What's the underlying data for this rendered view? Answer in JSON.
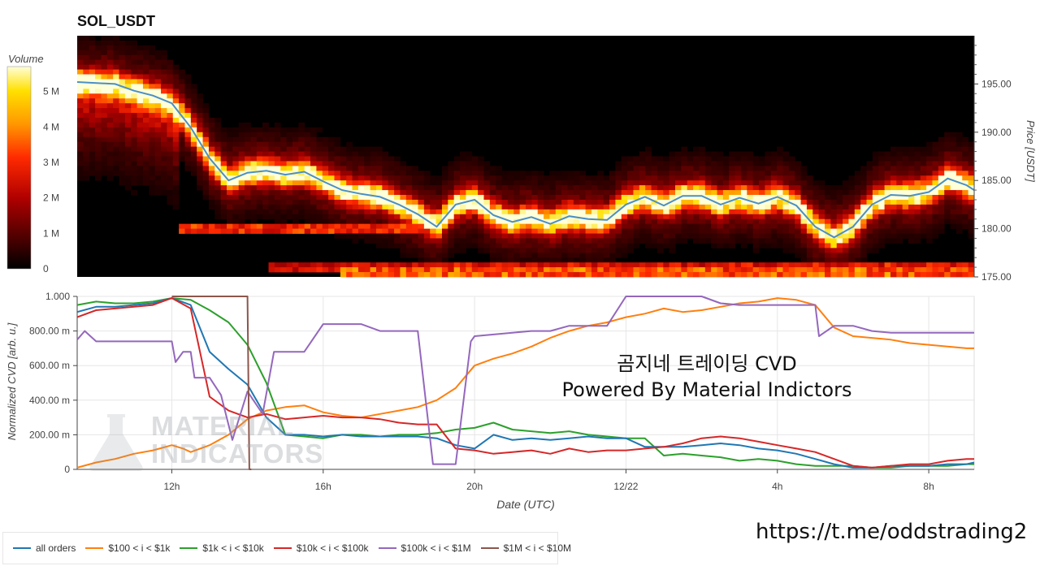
{
  "title": "SOL_USDT",
  "watermark": {
    "line1": "곰지네 트레이딩 CVD",
    "line2": "Powered By Material Indictors"
  },
  "brand": {
    "line1": "MATERIAL",
    "line2": "INDICATORS"
  },
  "url": "https://t.me/oddstrading2",
  "colorbar": {
    "label": "Volume",
    "ticks": [
      "0",
      "1 M",
      "2 M",
      "3 M",
      "4 M",
      "5 M"
    ]
  },
  "x_ticks": [
    "12h",
    "16h",
    "20h",
    "12/22",
    "4h",
    "8h"
  ],
  "legend": [
    {
      "label": "all orders",
      "color": "#1f77b4"
    },
    {
      "label": "$100 < i < $1k",
      "color": "#ff7f0e"
    },
    {
      "label": "$1k < i < $10k",
      "color": "#2ca02c"
    },
    {
      "label": "$10k < i < $100k",
      "color": "#d62728"
    },
    {
      "label": "$100k < i < $1M",
      "color": "#9467bd"
    },
    {
      "label": "$1M < i < $10M",
      "color": "#8c564b"
    }
  ],
  "chart_data": [
    {
      "type": "heatmap",
      "title": "SOL_USDT",
      "ylabel": "Price [USDT]",
      "ylim": [
        175,
        200
      ],
      "y_ticks": [
        "175.00",
        "180.00",
        "185.00",
        "190.00",
        "195.00"
      ],
      "colorscale": "hot",
      "zlim": [
        0,
        5700000
      ],
      "x_ticks": [
        "12h",
        "16h",
        "20h",
        "12/22",
        "4h",
        "8h"
      ],
      "price_line": {
        "name": "price",
        "color": "#4a8fc7",
        "x": [
          9.5,
          10.5,
          11.0,
          11.5,
          12.0,
          12.5,
          13.0,
          13.5,
          14.0,
          14.5,
          15.0,
          15.5,
          16.0,
          16.5,
          17.0,
          17.5,
          18.0,
          18.5,
          19.0,
          19.5,
          20.0,
          20.5,
          21.0,
          21.5,
          22.0,
          22.5,
          23.0,
          23.5,
          24.0,
          24.5,
          25.0,
          25.5,
          26.0,
          26.5,
          27.0,
          27.5,
          28.0,
          28.5,
          29.0,
          29.5,
          30.0,
          30.5,
          31.0,
          31.5,
          32.0,
          32.5,
          33.0,
          33.2
        ],
        "y": [
          195.2,
          195.0,
          194.3,
          193.8,
          193.0,
          190.5,
          187.3,
          185.0,
          185.8,
          186.0,
          185.6,
          185.9,
          184.9,
          184.0,
          183.6,
          183.3,
          182.5,
          181.5,
          180.2,
          182.5,
          183.0,
          181.4,
          180.7,
          181.2,
          180.5,
          181.3,
          181.0,
          180.9,
          182.5,
          183.3,
          182.4,
          183.4,
          183.4,
          182.5,
          183.2,
          182.6,
          183.3,
          182.4,
          180.2,
          179.1,
          180.2,
          182.5,
          183.5,
          183.4,
          183.8,
          185.2,
          184.5,
          184.0
        ]
      },
      "bands": [
        {
          "price": 180.0,
          "start": 12.2,
          "end": 19.0,
          "level": 0.45
        },
        {
          "price": 176.0,
          "start": 14.5,
          "end": 33.2,
          "level": 0.4
        },
        {
          "price": 175.5,
          "start": 16.5,
          "end": 33.2,
          "level": 0.55
        }
      ]
    },
    {
      "type": "line",
      "xlabel": "Date (UTC)",
      "ylabel": "Normalized CVD [arb. u.]",
      "ylim": [
        0,
        1
      ],
      "y_ticks": [
        "0",
        "200.00 m",
        "400.00 m",
        "600.00 m",
        "800.00 m",
        "1.000"
      ],
      "x_ticks": [
        "12h",
        "16h",
        "20h",
        "12/22",
        "4h",
        "8h"
      ],
      "series": [
        {
          "name": "$100 < i < $1k",
          "color": "#ff7f0e",
          "x": [
            9.5,
            10.0,
            10.5,
            11.0,
            11.5,
            12.0,
            12.3,
            12.5,
            13.0,
            13.5,
            14.0,
            14.5,
            15.0,
            15.5,
            16.0,
            16.5,
            17.0,
            17.5,
            18.0,
            18.5,
            19.0,
            19.5,
            20.0,
            20.5,
            21.0,
            21.5,
            22.0,
            22.5,
            23.0,
            23.5,
            24.0,
            24.5,
            25.0,
            25.5,
            26.0,
            26.5,
            27.0,
            27.5,
            28.0,
            28.5,
            29.0,
            29.5,
            30.0,
            30.5,
            31.0,
            31.5,
            32.0,
            32.5,
            33.0,
            33.2
          ],
          "y": [
            0.01,
            0.04,
            0.06,
            0.09,
            0.11,
            0.14,
            0.12,
            0.1,
            0.14,
            0.2,
            0.29,
            0.34,
            0.36,
            0.37,
            0.33,
            0.31,
            0.3,
            0.32,
            0.34,
            0.36,
            0.4,
            0.47,
            0.6,
            0.64,
            0.67,
            0.71,
            0.76,
            0.8,
            0.83,
            0.85,
            0.88,
            0.9,
            0.93,
            0.91,
            0.92,
            0.94,
            0.96,
            0.97,
            0.99,
            0.98,
            0.95,
            0.82,
            0.77,
            0.76,
            0.75,
            0.73,
            0.72,
            0.71,
            0.7,
            0.7
          ]
        },
        {
          "name": "$1k < i < $10k",
          "color": "#2ca02c",
          "x": [
            9.5,
            10.0,
            10.5,
            11.0,
            11.5,
            12.0,
            12.5,
            13.0,
            13.5,
            14.0,
            14.5,
            15.0,
            15.5,
            16.0,
            16.5,
            17.0,
            17.5,
            18.0,
            18.5,
            19.0,
            19.5,
            20.0,
            20.5,
            21.0,
            21.5,
            22.0,
            22.5,
            23.0,
            23.5,
            24.0,
            24.5,
            25.0,
            25.5,
            26.0,
            26.5,
            27.0,
            27.5,
            28.0,
            28.5,
            29.0,
            29.5,
            30.0,
            30.5,
            31.0,
            31.5,
            32.0,
            32.5,
            33.0,
            33.2
          ],
          "y": [
            0.95,
            0.97,
            0.96,
            0.96,
            0.97,
            0.99,
            0.98,
            0.92,
            0.85,
            0.72,
            0.5,
            0.2,
            0.19,
            0.18,
            0.2,
            0.2,
            0.19,
            0.2,
            0.2,
            0.21,
            0.23,
            0.24,
            0.27,
            0.23,
            0.22,
            0.21,
            0.22,
            0.2,
            0.19,
            0.18,
            0.18,
            0.08,
            0.09,
            0.08,
            0.07,
            0.05,
            0.06,
            0.05,
            0.03,
            0.02,
            0.02,
            0.02,
            0.01,
            0.01,
            0.02,
            0.02,
            0.02,
            0.03,
            0.03
          ]
        },
        {
          "name": "all orders",
          "color": "#1f77b4",
          "x": [
            9.5,
            10.0,
            10.5,
            11.0,
            11.5,
            12.0,
            12.5,
            13.0,
            13.5,
            14.0,
            14.5,
            15.0,
            15.5,
            16.0,
            16.5,
            17.0,
            17.5,
            18.0,
            18.5,
            19.0,
            19.5,
            20.0,
            20.5,
            21.0,
            21.5,
            22.0,
            22.5,
            23.0,
            23.5,
            24.0,
            24.5,
            25.0,
            25.5,
            26.0,
            26.5,
            27.0,
            27.5,
            28.0,
            28.5,
            29.0,
            29.5,
            30.0,
            30.5,
            31.0,
            31.5,
            32.0,
            32.5,
            33.0,
            33.2
          ],
          "y": [
            0.91,
            0.94,
            0.94,
            0.95,
            0.96,
            0.99,
            0.95,
            0.68,
            0.58,
            0.49,
            0.3,
            0.2,
            0.2,
            0.19,
            0.2,
            0.19,
            0.19,
            0.19,
            0.19,
            0.18,
            0.14,
            0.12,
            0.2,
            0.17,
            0.18,
            0.17,
            0.18,
            0.19,
            0.18,
            0.18,
            0.13,
            0.13,
            0.13,
            0.14,
            0.15,
            0.14,
            0.12,
            0.11,
            0.09,
            0.06,
            0.03,
            0.01,
            0.01,
            0.02,
            0.02,
            0.02,
            0.03,
            0.03,
            0.04
          ]
        },
        {
          "name": "$10k < i < $100k",
          "color": "#d62728",
          "x": [
            9.5,
            10.0,
            10.5,
            11.0,
            11.5,
            12.0,
            12.5,
            13.0,
            13.5,
            14.0,
            14.5,
            15.0,
            15.5,
            16.0,
            16.5,
            17.0,
            17.5,
            18.0,
            18.5,
            19.0,
            19.5,
            20.0,
            20.5,
            21.0,
            21.5,
            22.0,
            22.5,
            23.0,
            23.5,
            24.0,
            24.5,
            25.0,
            25.5,
            26.0,
            26.5,
            27.0,
            27.5,
            28.0,
            28.5,
            29.0,
            29.5,
            30.0,
            30.5,
            31.0,
            31.5,
            32.0,
            32.5,
            33.0,
            33.2
          ],
          "y": [
            0.88,
            0.92,
            0.93,
            0.94,
            0.95,
            0.99,
            0.93,
            0.42,
            0.34,
            0.3,
            0.32,
            0.29,
            0.3,
            0.31,
            0.3,
            0.3,
            0.29,
            0.27,
            0.26,
            0.26,
            0.12,
            0.11,
            0.09,
            0.1,
            0.11,
            0.09,
            0.12,
            0.1,
            0.11,
            0.11,
            0.12,
            0.13,
            0.15,
            0.18,
            0.19,
            0.18,
            0.16,
            0.14,
            0.12,
            0.1,
            0.06,
            0.02,
            0.01,
            0.02,
            0.03,
            0.03,
            0.05,
            0.06,
            0.06
          ]
        },
        {
          "name": "$100k < i < $1M",
          "color": "#9467bd",
          "x": [
            9.5,
            9.7,
            10.0,
            11.5,
            12.0,
            12.1,
            12.3,
            12.5,
            12.6,
            13.0,
            13.3,
            13.6,
            14.0,
            14.4,
            14.7,
            15.0,
            15.5,
            16.0,
            17.0,
            17.5,
            18.5,
            18.9,
            19.0,
            19.5,
            19.9,
            20.0,
            20.5,
            21.0,
            21.5,
            22.0,
            22.5,
            23.0,
            23.5,
            24.0,
            25.0,
            25.5,
            26.0,
            26.5,
            27.0,
            27.5,
            28.0,
            29.0,
            29.1,
            29.5,
            30.0,
            30.5,
            31.0,
            32.0,
            33.0,
            33.2
          ],
          "y": [
            0.75,
            0.8,
            0.74,
            0.74,
            0.74,
            0.62,
            0.68,
            0.68,
            0.53,
            0.53,
            0.43,
            0.17,
            0.45,
            0.32,
            0.68,
            0.68,
            0.68,
            0.84,
            0.84,
            0.8,
            0.8,
            0.03,
            0.03,
            0.03,
            0.74,
            0.77,
            0.78,
            0.79,
            0.8,
            0.8,
            0.83,
            0.83,
            0.83,
            1.0,
            1.0,
            1.0,
            1.0,
            0.96,
            0.95,
            0.95,
            0.95,
            0.95,
            0.77,
            0.83,
            0.83,
            0.8,
            0.79,
            0.79,
            0.79,
            0.79
          ]
        },
        {
          "name": "$1M < i < $10M",
          "color": "#8c564b",
          "x": [
            12.0,
            13.5,
            14.0,
            14.05,
            14.1
          ],
          "y": [
            1.0,
            1.0,
            1.0,
            0.0,
            0.0
          ]
        }
      ]
    }
  ]
}
